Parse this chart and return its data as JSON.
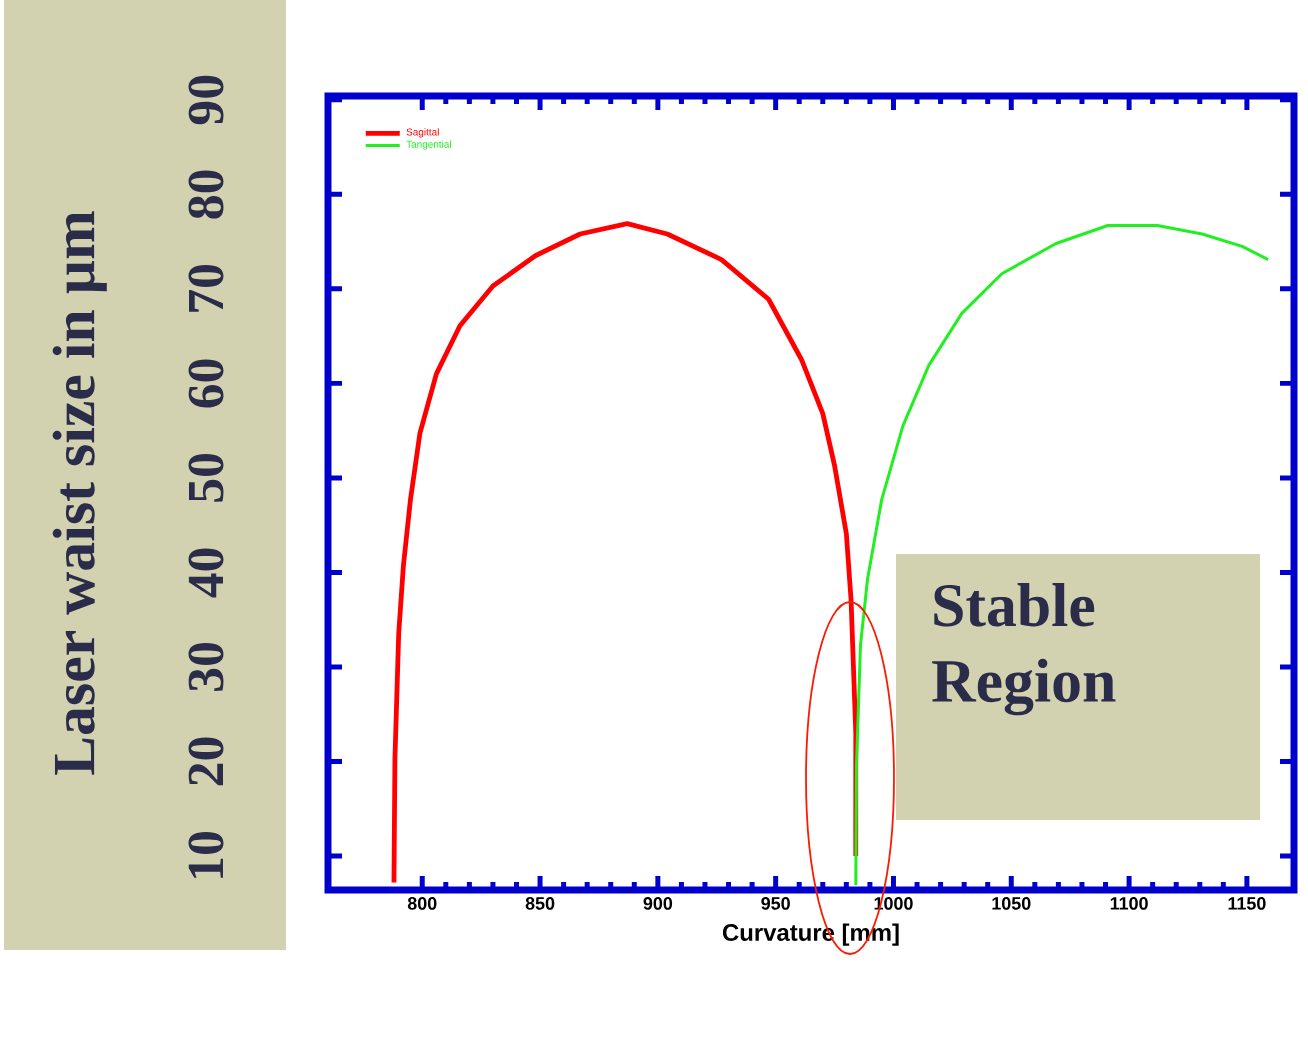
{
  "chart_data": {
    "type": "line",
    "xlabel": "Curvature  [mm]",
    "ylabel": "Laser waist size in µm",
    "xlim": [
      760,
      1170
    ],
    "ylim": [
      6.4,
      90.4
    ],
    "xticks": [
      800,
      850,
      900,
      950,
      1000,
      1050,
      1100,
      1150
    ],
    "yticks": [
      10,
      20,
      30,
      40,
      50,
      60,
      70,
      80,
      90
    ],
    "legend": "top left",
    "line_style": "solid",
    "series": [
      {
        "name": "Sagittal",
        "color": "#ff0000",
        "x": [
          788,
          788.4,
          790,
          792,
          795,
          799,
          806,
          816,
          830,
          848,
          867,
          887,
          904,
          927,
          947,
          961,
          970,
          975,
          980,
          982,
          983,
          984,
          984
        ],
        "values": [
          7.2,
          20.2,
          33.5,
          40.7,
          47.7,
          54.7,
          61.0,
          66.1,
          70.3,
          73.5,
          75.8,
          76.9,
          75.8,
          73.1,
          68.9,
          62.5,
          56.8,
          51.3,
          44.1,
          37.1,
          30.1,
          23,
          10
        ]
      },
      {
        "name": "Tangential",
        "color": "#22ee22",
        "x": [
          984,
          984.3,
          986,
          989,
          995,
          1004,
          1015,
          1029,
          1046,
          1069,
          1091,
          1112,
          1131,
          1148,
          1159
        ],
        "values": [
          6.9,
          19.6,
          32.3,
          39.3,
          47.7,
          55.5,
          61.9,
          67.4,
          71.6,
          74.8,
          76.7,
          76.7,
          75.8,
          74.5,
          73.1
        ]
      }
    ],
    "annotations": [
      "Stable Region"
    ]
  }
}
